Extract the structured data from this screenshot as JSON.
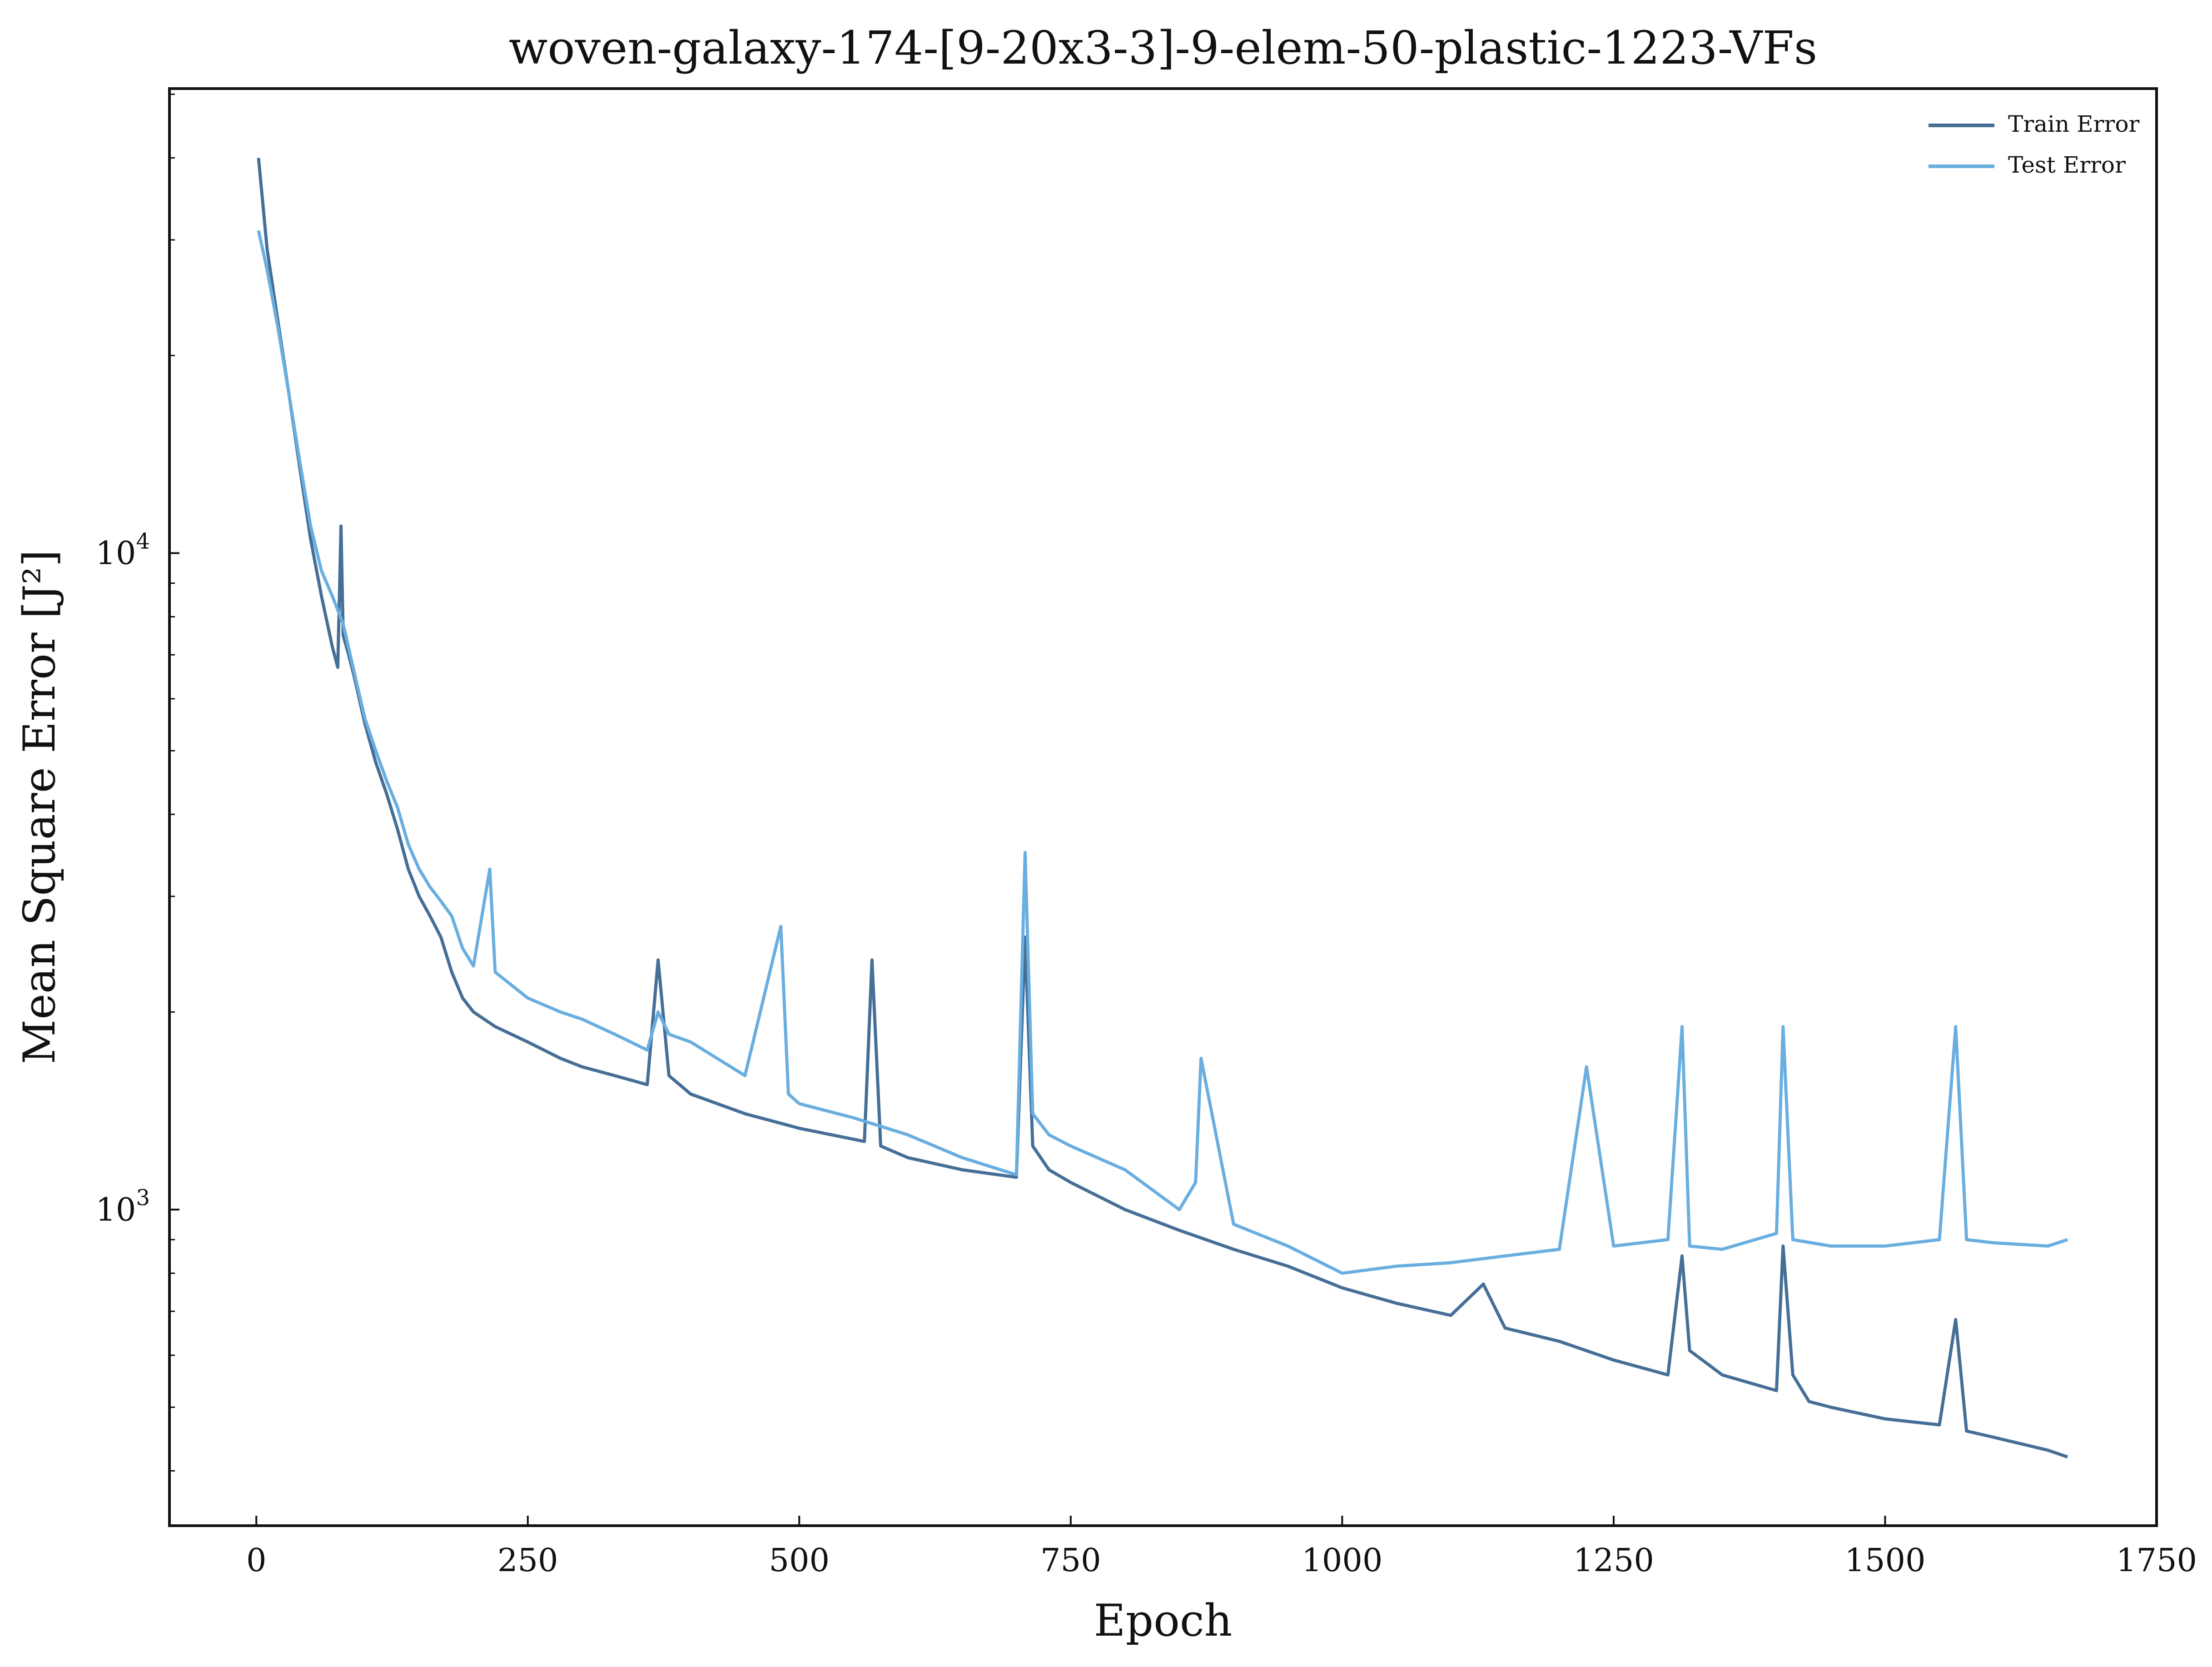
{
  "chart_data": {
    "type": "line",
    "title": "woven-galaxy-174-[9-20x3-3]-9-elem-50-plastic-1223-VFs",
    "xlabel": "Epoch",
    "ylabel": "Mean Square Error [J²]",
    "xlim": [
      -80,
      1750
    ],
    "ylim": [
      330,
      51000
    ],
    "yscale": "log",
    "x_ticks": [
      0,
      250,
      500,
      750,
      1000,
      1250,
      1500,
      1750
    ],
    "x_tick_labels": [
      "0",
      "250",
      "500",
      "750",
      "1000",
      "1250",
      "1500",
      "1750"
    ],
    "y_ticks": [
      {
        "value": 1000,
        "base": "10",
        "exp": "3"
      },
      {
        "value": 10000,
        "base": "10",
        "exp": "4"
      }
    ],
    "grid": false,
    "legend_position": "top-right",
    "series": [
      {
        "name": "Train Error",
        "color": "#456f96",
        "x": [
          2,
          10,
          20,
          30,
          40,
          50,
          60,
          70,
          75,
          78,
          80,
          85,
          90,
          100,
          110,
          120,
          130,
          140,
          150,
          160,
          170,
          180,
          190,
          200,
          220,
          250,
          280,
          300,
          330,
          360,
          370,
          380,
          400,
          450,
          500,
          550,
          560,
          567,
          575,
          600,
          650,
          700,
          708,
          715,
          730,
          750,
          800,
          850,
          900,
          950,
          1000,
          1050,
          1100,
          1130,
          1150,
          1200,
          1250,
          1300,
          1313,
          1320,
          1350,
          1400,
          1406,
          1415,
          1430,
          1450,
          1500,
          1550,
          1565,
          1575,
          1600,
          1650,
          1668
        ],
        "y": [
          40000,
          29000,
          22500,
          17500,
          13500,
          10500,
          8600,
          7200,
          6700,
          11000,
          7500,
          7000,
          6500,
          5500,
          4800,
          4300,
          3800,
          3300,
          3000,
          2800,
          2600,
          2300,
          2100,
          2000,
          1900,
          1800,
          1700,
          1650,
          1600,
          1550,
          2400,
          1600,
          1500,
          1400,
          1330,
          1280,
          1270,
          2400,
          1250,
          1200,
          1150,
          1120,
          2600,
          1250,
          1150,
          1100,
          1000,
          930,
          870,
          820,
          760,
          720,
          690,
          770,
          660,
          630,
          590,
          560,
          850,
          610,
          560,
          530,
          880,
          560,
          510,
          500,
          480,
          470,
          680,
          460,
          450,
          430,
          420
        ]
      },
      {
        "name": "Test Error",
        "color": "#6aaee0",
        "x": [
          2,
          10,
          20,
          30,
          40,
          50,
          60,
          70,
          80,
          90,
          100,
          110,
          120,
          130,
          140,
          150,
          160,
          170,
          180,
          190,
          200,
          215,
          220,
          250,
          280,
          300,
          330,
          360,
          370,
          380,
          400,
          450,
          483,
          490,
          500,
          550,
          600,
          650,
          700,
          708,
          715,
          730,
          750,
          800,
          850,
          865,
          870,
          900,
          950,
          1000,
          1050,
          1100,
          1150,
          1200,
          1225,
          1250,
          1300,
          1313,
          1320,
          1350,
          1400,
          1406,
          1415,
          1450,
          1500,
          1550,
          1565,
          1575,
          1600,
          1650,
          1668
        ],
        "y": [
          31000,
          27000,
          22000,
          17500,
          13800,
          11000,
          9400,
          8600,
          7800,
          6600,
          5600,
          5000,
          4500,
          4100,
          3600,
          3300,
          3100,
          2950,
          2800,
          2500,
          2350,
          3300,
          2300,
          2100,
          2000,
          1950,
          1850,
          1750,
          2000,
          1850,
          1800,
          1600,
          2700,
          1500,
          1450,
          1380,
          1300,
          1200,
          1130,
          3500,
          1400,
          1300,
          1250,
          1150,
          1000,
          1100,
          1700,
          950,
          880,
          800,
          820,
          830,
          850,
          870,
          1650,
          880,
          900,
          1900,
          880,
          870,
          920,
          1900,
          900,
          880,
          880,
          900,
          1900,
          900,
          890,
          880,
          900
        ]
      }
    ]
  }
}
